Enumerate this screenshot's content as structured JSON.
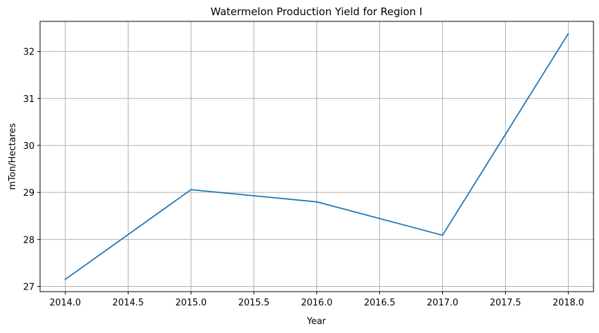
{
  "chart_data": {
    "type": "line",
    "title": "Watermelon Production Yield for Region I",
    "xlabel": "Year",
    "ylabel": "mTon/Hectares",
    "x": [
      2014.0,
      2015.0,
      2016.0,
      2017.0,
      2018.0
    ],
    "series": [
      {
        "values": [
          27.15,
          29.06,
          28.8,
          28.09,
          32.38
        ]
      }
    ],
    "xlim": [
      2013.8,
      2018.2
    ],
    "ylim": [
      26.89,
      32.64
    ],
    "xticks": [
      2014.0,
      2014.5,
      2015.0,
      2015.5,
      2016.0,
      2016.5,
      2017.0,
      2017.5,
      2018.0
    ],
    "xtick_labels": [
      "2014.0",
      "2014.5",
      "2015.0",
      "2015.5",
      "2016.0",
      "2016.5",
      "2017.0",
      "2017.5",
      "2018.0"
    ],
    "yticks": [
      27,
      28,
      29,
      30,
      31,
      32
    ],
    "ytick_labels": [
      "27",
      "28",
      "29",
      "30",
      "31",
      "32"
    ],
    "grid": true,
    "colors": {
      "line": "#1f77b4",
      "grid": "#b0b0b0",
      "axes": "#000000"
    }
  }
}
